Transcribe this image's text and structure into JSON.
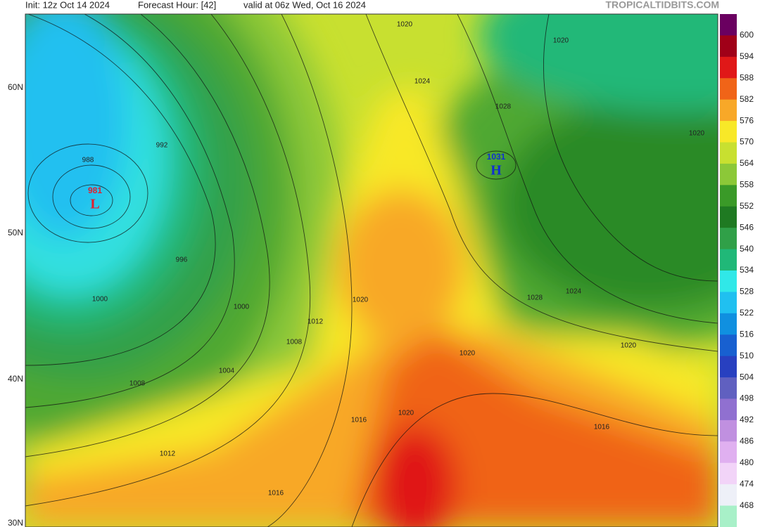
{
  "header": {
    "init": "Init: 12z Oct 14 2024",
    "forecast_hour": "Forecast Hour: [42]",
    "valid": "valid at 06z Wed, Oct 16 2024",
    "site": "TROPICALTIDBITS.COM"
  },
  "latitude_labels": [
    "60N",
    "50N",
    "40N",
    "30N"
  ],
  "colorbar": {
    "labels": [
      600,
      594,
      588,
      582,
      576,
      570,
      564,
      558,
      552,
      546,
      540,
      534,
      528,
      522,
      516,
      510,
      504,
      498,
      492,
      486,
      480,
      474,
      468
    ]
  },
  "contour_labels": [
    "1020",
    "1024",
    "1028",
    "1020",
    "1020",
    "992",
    "988",
    "981",
    "L",
    "1031",
    "H",
    "996",
    "1000",
    "1000",
    "1012",
    "1008",
    "1004",
    "1008",
    "1020",
    "1028",
    "1024",
    "1020",
    "1020",
    "1020",
    "1016",
    "1016",
    "1012",
    "1016"
  ]
}
